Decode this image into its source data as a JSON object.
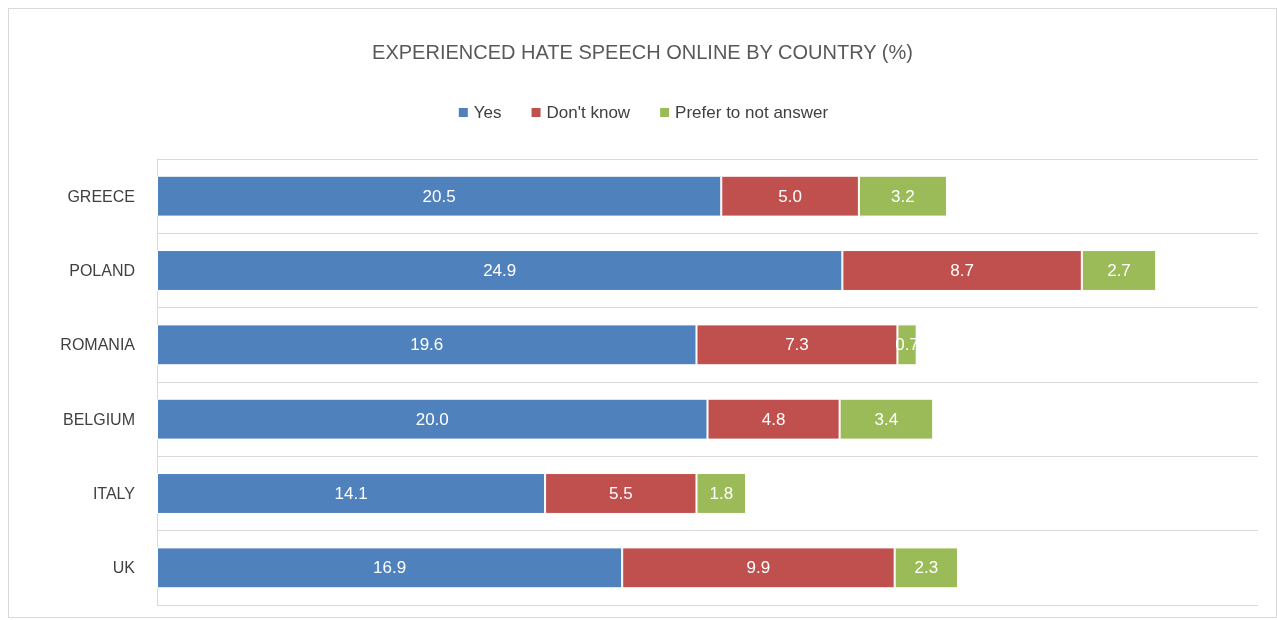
{
  "chart_data": {
    "type": "bar",
    "orientation": "horizontal",
    "stacked": true,
    "title": "EXPERIENCED HATE SPEECH ONLINE BY COUNTRY (%)",
    "categories": [
      "GREECE",
      "POLAND",
      "ROMANIA",
      "BELGIUM",
      "ITALY",
      "UK"
    ],
    "series": [
      {
        "name": "Yes",
        "color": "#4f81bd",
        "values": [
          20.5,
          24.9,
          19.6,
          20.0,
          14.1,
          16.9
        ],
        "value_labels": [
          "20.5",
          "24.9",
          "19.6",
          "20.0",
          "14.1",
          "16.9"
        ]
      },
      {
        "name": "Don't know",
        "color": "#c0504d",
        "values": [
          5.0,
          8.7,
          7.3,
          4.8,
          5.5,
          9.9
        ],
        "value_labels": [
          "5.0",
          "8.7",
          "7.3",
          "4.8",
          "5.5",
          "9.9"
        ]
      },
      {
        "name": "Prefer to not answer",
        "color": "#9bbb59",
        "values": [
          3.2,
          2.7,
          0.7,
          3.4,
          1.8,
          2.3
        ],
        "value_labels": [
          "3.2",
          "2.7",
          "0.7",
          "3.4",
          "1.8",
          "2.3"
        ]
      }
    ],
    "legend": "top",
    "grid": "y"
  }
}
